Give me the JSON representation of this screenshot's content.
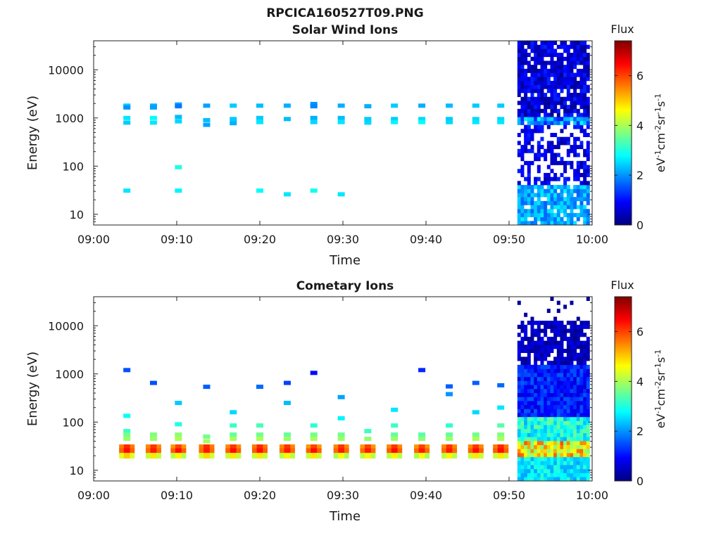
{
  "figure": {
    "title": "RPCICA160527T09.PNG"
  },
  "colorbar": {
    "label": "Flux",
    "unit_base": "eV",
    "unit_exp1": "-1",
    "unit_mid1": "cm",
    "unit_exp2": "-2",
    "unit_mid2": "sr",
    "unit_exp3": "-1",
    "unit_mid3": "s",
    "unit_exp4": "-1",
    "ticks": [
      "0",
      "2",
      "4",
      "6"
    ],
    "range": [
      0,
      7.4
    ],
    "colormap": [
      "#00007f",
      "#0000ff",
      "#007fff",
      "#00ffff",
      "#7fff7f",
      "#ffff00",
      "#ff7f00",
      "#ff0000",
      "#7f0000"
    ]
  },
  "chart_data": [
    {
      "type": "heatmap",
      "id": "solar",
      "title": "Solar Wind Ions",
      "xlabel": "Time",
      "ylabel": "Energy (eV)",
      "yscale": "log",
      "xlim": [
        "09:00",
        "10:00"
      ],
      "ylim": [
        6,
        40000
      ],
      "xticks": [
        "09:00",
        "09:10",
        "09:20",
        "09:30",
        "09:40",
        "09:50",
        "10:00"
      ],
      "yticks": [
        "10",
        "100",
        "1000",
        "10000"
      ],
      "sweeps": [
        {
          "time_min": 4.0,
          "cells": [
            [
              1800,
              2.4
            ],
            [
              1650,
              2.0
            ],
            [
              1000,
              2.6
            ],
            [
              800,
              2.4
            ],
            [
              31,
              2.6
            ]
          ]
        },
        {
          "time_min": 7.2,
          "cells": [
            [
              1800,
              2.2
            ],
            [
              1650,
              2.1
            ],
            [
              1000,
              2.8
            ],
            [
              800,
              2.6
            ]
          ]
        },
        {
          "time_min": 10.2,
          "cells": [
            [
              1900,
              2.1
            ],
            [
              1750,
              1.8
            ],
            [
              1050,
              2.3
            ],
            [
              850,
              2.5
            ],
            [
              95,
              3.0
            ],
            [
              31,
              2.7
            ]
          ]
        },
        {
          "time_min": 13.6,
          "cells": [
            [
              1800,
              2.1
            ],
            [
              900,
              2.3
            ],
            [
              720,
              2.1
            ]
          ]
        },
        {
          "time_min": 16.8,
          "cells": [
            [
              1800,
              2.4
            ],
            [
              950,
              2.4
            ],
            [
              780,
              2.2
            ]
          ]
        },
        {
          "time_min": 20.0,
          "cells": [
            [
              1800,
              2.3
            ],
            [
              1000,
              2.4
            ],
            [
              820,
              2.6
            ],
            [
              31,
              2.8
            ]
          ]
        },
        {
          "time_min": 23.3,
          "cells": [
            [
              1800,
              2.2
            ],
            [
              950,
              2.3
            ],
            [
              26,
              2.6
            ]
          ]
        },
        {
          "time_min": 26.5,
          "cells": [
            [
              1950,
              2.0
            ],
            [
              1750,
              1.9
            ],
            [
              1000,
              2.2
            ],
            [
              820,
              2.5
            ],
            [
              31,
              2.9
            ]
          ]
        },
        {
          "time_min": 29.8,
          "cells": [
            [
              1800,
              2.2
            ],
            [
              1000,
              2.3
            ],
            [
              820,
              2.6
            ],
            [
              26,
              2.6
            ]
          ]
        },
        {
          "time_min": 33.0,
          "cells": [
            [
              1750,
              2.2
            ],
            [
              950,
              2.4
            ],
            [
              800,
              2.5
            ]
          ]
        },
        {
          "time_min": 36.2,
          "cells": [
            [
              1800,
              2.4
            ],
            [
              950,
              2.4
            ],
            [
              820,
              2.7
            ]
          ]
        },
        {
          "time_min": 39.5,
          "cells": [
            [
              1800,
              2.2
            ],
            [
              950,
              2.5
            ],
            [
              820,
              2.8
            ]
          ]
        },
        {
          "time_min": 42.8,
          "cells": [
            [
              1800,
              2.3
            ],
            [
              950,
              2.4
            ],
            [
              820,
              2.5
            ]
          ]
        },
        {
          "time_min": 46.0,
          "cells": [
            [
              1800,
              2.4
            ],
            [
              950,
              2.5
            ],
            [
              820,
              2.6
            ]
          ]
        },
        {
          "time_min": 49.0,
          "cells": [
            [
              1800,
              2.4
            ],
            [
              950,
              2.5
            ],
            [
              820,
              2.6
            ]
          ]
        }
      ],
      "dense_region": {
        "time_start": 51.0,
        "time_end": 59.7,
        "energy_min": 6,
        "energy_max": 40000
      }
    },
    {
      "type": "heatmap",
      "id": "cometary",
      "title": "Cometary Ions",
      "xlabel": "Time",
      "ylabel": "Energy (eV)",
      "yscale": "log",
      "xlim": [
        "09:00",
        "10:00"
      ],
      "ylim": [
        6,
        40000
      ],
      "xticks": [
        "09:00",
        "09:10",
        "09:20",
        "09:30",
        "09:40",
        "09:50",
        "10:00"
      ],
      "yticks": [
        "10",
        "100",
        "1000",
        "10000"
      ],
      "sweeps": [
        {
          "time_min": 4.0,
          "cells": [
            [
              1200,
              1.5
            ],
            [
              135,
              2.8
            ],
            [
              65,
              3.2
            ],
            [
              55,
              3.6
            ],
            [
              45,
              3.9
            ],
            [
              30,
              5.6
            ],
            [
              25,
              5.8
            ],
            [
              20,
              4.4
            ]
          ]
        },
        {
          "time_min": 7.2,
          "cells": [
            [
              650,
              1.5
            ],
            [
              55,
              3.7
            ],
            [
              45,
              3.9
            ],
            [
              30,
              5.5
            ],
            [
              25,
              5.7
            ],
            [
              20,
              4.2
            ]
          ]
        },
        {
          "time_min": 10.2,
          "cells": [
            [
              250,
              2.4
            ],
            [
              90,
              3.0
            ],
            [
              55,
              3.8
            ],
            [
              45,
              4.0
            ],
            [
              30,
              5.4
            ],
            [
              25,
              5.8
            ],
            [
              20,
              4.1
            ]
          ]
        },
        {
          "time_min": 13.6,
          "cells": [
            [
              540,
              1.6
            ],
            [
              50,
              3.6
            ],
            [
              40,
              4.0
            ],
            [
              30,
              5.6
            ],
            [
              25,
              5.7
            ],
            [
              20,
              4.3
            ]
          ]
        },
        {
          "time_min": 16.8,
          "cells": [
            [
              160,
              2.5
            ],
            [
              85,
              3.2
            ],
            [
              55,
              3.5
            ],
            [
              45,
              4.0
            ],
            [
              30,
              5.5
            ],
            [
              25,
              5.8
            ],
            [
              20,
              4.2
            ]
          ]
        },
        {
          "time_min": 20.0,
          "cells": [
            [
              540,
              1.7
            ],
            [
              85,
              3.3
            ],
            [
              55,
              3.6
            ],
            [
              45,
              4.0
            ],
            [
              30,
              5.6
            ],
            [
              25,
              5.8
            ],
            [
              20,
              4.2
            ]
          ]
        },
        {
          "time_min": 23.3,
          "cells": [
            [
              650,
              1.4
            ],
            [
              250,
              2.3
            ],
            [
              55,
              3.5
            ],
            [
              45,
              3.9
            ],
            [
              30,
              5.5
            ],
            [
              25,
              5.7
            ],
            [
              20,
              4.1
            ]
          ]
        },
        {
          "time_min": 26.5,
          "cells": [
            [
              1050,
              1.0
            ],
            [
              85,
              3.1
            ],
            [
              55,
              3.6
            ],
            [
              45,
              4.0
            ],
            [
              30,
              5.4
            ],
            [
              25,
              5.8
            ],
            [
              20,
              4.2
            ]
          ]
        },
        {
          "time_min": 29.8,
          "cells": [
            [
              330,
              2.1
            ],
            [
              120,
              2.7
            ],
            [
              55,
              3.6
            ],
            [
              45,
              3.9
            ],
            [
              30,
              5.5
            ],
            [
              25,
              5.7
            ],
            [
              20,
              4.0
            ]
          ]
        },
        {
          "time_min": 33.0,
          "cells": [
            [
              65,
              3.2
            ],
            [
              45,
              3.8
            ],
            [
              30,
              5.4
            ],
            [
              25,
              5.7
            ],
            [
              20,
              4.1
            ]
          ]
        },
        {
          "time_min": 36.2,
          "cells": [
            [
              180,
              2.6
            ],
            [
              85,
              3.2
            ],
            [
              55,
              3.5
            ],
            [
              45,
              3.9
            ],
            [
              30,
              5.5
            ],
            [
              25,
              5.8
            ],
            [
              20,
              4.1
            ]
          ]
        },
        {
          "time_min": 39.5,
          "cells": [
            [
              1200,
              1.2
            ],
            [
              55,
              3.4
            ],
            [
              45,
              3.8
            ],
            [
              30,
              5.4
            ],
            [
              25,
              5.7
            ],
            [
              20,
              4.0
            ]
          ]
        },
        {
          "time_min": 42.8,
          "cells": [
            [
              550,
              1.6
            ],
            [
              380,
              2.0
            ],
            [
              85,
              3.1
            ],
            [
              55,
              3.5
            ],
            [
              45,
              3.9
            ],
            [
              30,
              5.5
            ],
            [
              25,
              5.7
            ],
            [
              20,
              4.1
            ]
          ]
        },
        {
          "time_min": 46.0,
          "cells": [
            [
              650,
              1.6
            ],
            [
              160,
              2.5
            ],
            [
              55,
              3.6
            ],
            [
              45,
              4.0
            ],
            [
              30,
              5.5
            ],
            [
              25,
              5.8
            ],
            [
              20,
              4.2
            ]
          ]
        },
        {
          "time_min": 49.0,
          "cells": [
            [
              580,
              1.7
            ],
            [
              200,
              2.6
            ],
            [
              85,
              3.4
            ],
            [
              55,
              3.7
            ],
            [
              45,
              4.0
            ],
            [
              30,
              5.6
            ],
            [
              25,
              5.8
            ],
            [
              20,
              4.2
            ]
          ]
        }
      ],
      "dense_region": {
        "time_start": 51.0,
        "time_end": 59.7,
        "energy_min": 6,
        "energy_max": 40000
      }
    }
  ]
}
